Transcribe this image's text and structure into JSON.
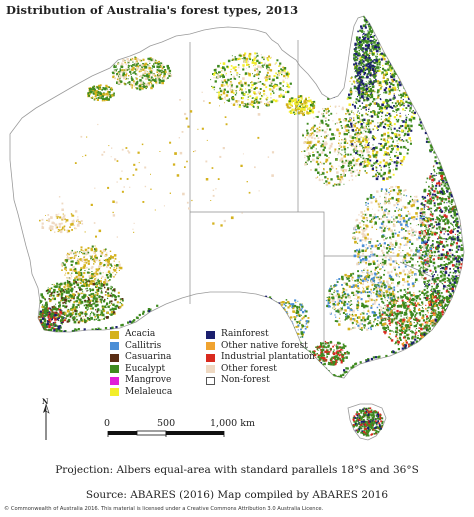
{
  "title": "Distribution of Australia's forest types, 2013",
  "legend": {
    "left_column": [
      {
        "label": "Acacia",
        "color": "#d4b21f"
      },
      {
        "label": "Callitris",
        "color": "#4a8ed6"
      },
      {
        "label": "Casuarina",
        "color": "#5a2d14"
      },
      {
        "label": "Eucalypt",
        "color": "#3e8a1f"
      },
      {
        "label": "Mangrove",
        "color": "#e020d8"
      },
      {
        "label": "Melaleuca",
        "color": "#f2ee2a"
      }
    ],
    "right_column": [
      {
        "label": "Rainforest",
        "color": "#1b1f6e"
      },
      {
        "label": "Other native forest",
        "color": "#f0a330"
      },
      {
        "label": "Industrial plantation",
        "color": "#d92a1f"
      },
      {
        "label": "Other forest",
        "color": "#efd9c2"
      },
      {
        "label": "Non-forest",
        "color": "#ffffff"
      }
    ]
  },
  "scale_bar": {
    "labels": [
      "0",
      "500",
      "1,000 km"
    ]
  },
  "north_arrow": {
    "label": "N"
  },
  "projection": "Projection: Albers equal-area with standard parallels 18°S and 36°S",
  "source": "Source: ABARES (2016)  Map compiled by ABARES 2016",
  "copyright": "© Commonwealth of Australia 2016. This material is licensed under a Creative Commons Attribution 3.0 Australia Licence."
}
